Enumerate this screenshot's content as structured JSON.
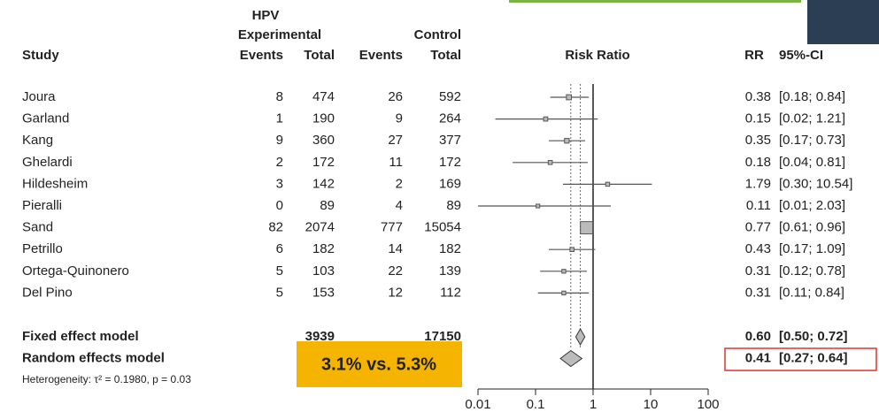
{
  "chart_data": {
    "type": "forest",
    "headers": {
      "group": "HPV",
      "experimental": "Experimental",
      "control": "Control",
      "study": "Study",
      "exp_events": "Events",
      "exp_total": "Total",
      "ctl_events": "Events",
      "ctl_total": "Total",
      "plot": "Risk Ratio",
      "rr": "RR",
      "ci": "95%-CI"
    },
    "studies": [
      {
        "name": "Joura",
        "exp_events": 8,
        "exp_total": 474,
        "ctl_events": 26,
        "ctl_total": 592,
        "rr": 0.38,
        "lower": 0.18,
        "upper": 0.84,
        "ci_label": "[0.18; 0.84]"
      },
      {
        "name": "Garland",
        "exp_events": 1,
        "exp_total": 190,
        "ctl_events": 9,
        "ctl_total": 264,
        "rr": 0.15,
        "lower": 0.02,
        "upper": 1.21,
        "ci_label": "[0.02; 1.21]"
      },
      {
        "name": "Kang",
        "exp_events": 9,
        "exp_total": 360,
        "ctl_events": 27,
        "ctl_total": 377,
        "rr": 0.35,
        "lower": 0.17,
        "upper": 0.73,
        "ci_label": "[0.17; 0.73]"
      },
      {
        "name": "Ghelardi",
        "exp_events": 2,
        "exp_total": 172,
        "ctl_events": 11,
        "ctl_total": 172,
        "rr": 0.18,
        "lower": 0.04,
        "upper": 0.81,
        "ci_label": "[0.04; 0.81]"
      },
      {
        "name": "Hildesheim",
        "exp_events": 3,
        "exp_total": 142,
        "ctl_events": 2,
        "ctl_total": 169,
        "rr": 1.79,
        "lower": 0.3,
        "upper": 10.54,
        "ci_label": "[0.30; 10.54]"
      },
      {
        "name": "Pieralli",
        "exp_events": 0,
        "exp_total": 89,
        "ctl_events": 4,
        "ctl_total": 89,
        "rr": 0.11,
        "lower": 0.01,
        "upper": 2.03,
        "ci_label": "[0.01; 2.03]"
      },
      {
        "name": "Sand",
        "exp_events": 82,
        "exp_total": 2074,
        "ctl_events": 777,
        "ctl_total": 15054,
        "rr": 0.77,
        "lower": 0.61,
        "upper": 0.96,
        "ci_label": "[0.61; 0.96]"
      },
      {
        "name": "Petrillo",
        "exp_events": 6,
        "exp_total": 182,
        "ctl_events": 14,
        "ctl_total": 182,
        "rr": 0.43,
        "lower": 0.17,
        "upper": 1.09,
        "ci_label": "[0.17; 1.09]"
      },
      {
        "name": "Ortega-Quinonero",
        "exp_events": 5,
        "exp_total": 103,
        "ctl_events": 22,
        "ctl_total": 139,
        "rr": 0.31,
        "lower": 0.12,
        "upper": 0.78,
        "ci_label": "[0.12; 0.78]"
      },
      {
        "name": "Del Pino",
        "exp_events": 5,
        "exp_total": 153,
        "ctl_events": 12,
        "ctl_total": 112,
        "rr": 0.31,
        "lower": 0.11,
        "upper": 0.84,
        "ci_label": "[0.11; 0.84]"
      }
    ],
    "models": [
      {
        "name": "Fixed effect model",
        "exp_total": 3939,
        "ctl_total": 17150,
        "rr": 0.6,
        "rr_label": "0.60",
        "lower": 0.5,
        "upper": 0.72,
        "ci_label": "[0.50; 0.72]"
      },
      {
        "name": "Random effects model",
        "rr": 0.41,
        "lower": 0.27,
        "upper": 0.64,
        "ci_label": "[0.27; 0.64]"
      }
    ],
    "heterogeneity": "Heterogeneity: τ² = 0.1980, p = 0.03",
    "annotation": "3.1% vs. 5.3%",
    "null_line": 1,
    "log_x": true,
    "xlim": [
      0.01,
      100
    ],
    "xticks": [
      0.01,
      0.1,
      1,
      10,
      100
    ],
    "color": "#555555"
  }
}
